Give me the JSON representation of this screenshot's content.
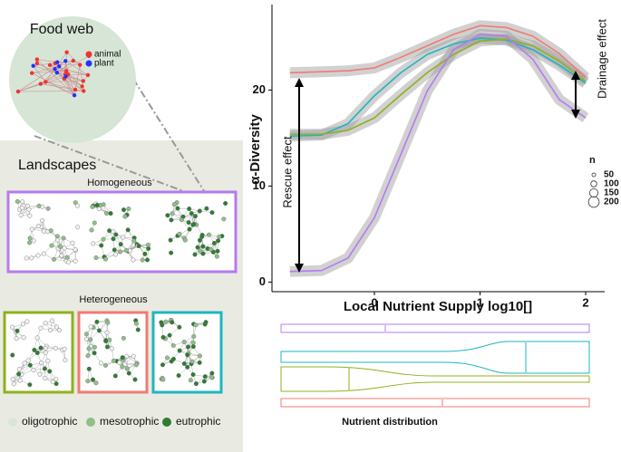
{
  "food_web": {
    "title": "Food web",
    "legend": [
      "animal",
      "plant"
    ]
  },
  "landscapes": {
    "title": "Landscapes",
    "homogeneous": "Homogeneous",
    "heterogeneous": "Heterogeneous",
    "legend": [
      "oligotrophic",
      "mesotrophic",
      "eutrophic"
    ]
  },
  "chart_data": {
    "type": "line",
    "y_label": "α-Diversity",
    "x_label": "Local Nutrient Supply log10[]",
    "x": [
      -0.8,
      -0.5,
      -0.25,
      0,
      0.25,
      0.5,
      0.75,
      1,
      1.25,
      1.5,
      1.75,
      2
    ],
    "series": [
      {
        "color": "#f07b72",
        "values": [
          21.8,
          21.9,
          22.0,
          22.3,
          23.4,
          24.6,
          25.8,
          26.7,
          26.5,
          25.6,
          23.8,
          21.3
        ]
      },
      {
        "color": "#1fb5c0",
        "values": [
          15.2,
          15.3,
          16.5,
          19.4,
          21.8,
          23.7,
          24.8,
          25.4,
          25.2,
          24.2,
          22.6,
          20.7
        ]
      },
      {
        "color": "#8fb01e",
        "values": [
          15.4,
          15.4,
          15.8,
          17.1,
          19.5,
          21.8,
          23.7,
          25.1,
          25.3,
          24.6,
          23.0,
          20.9
        ]
      },
      {
        "color": "#b57bef",
        "values": [
          1.1,
          1.2,
          2.5,
          6.7,
          13.3,
          19.9,
          24.2,
          25.8,
          25.6,
          23.2,
          19.0,
          17.1
        ]
      }
    ],
    "xlim": [
      -0.97,
      2.18
    ],
    "ylim": [
      -1,
      28.9
    ],
    "xticks": [
      0,
      1,
      2
    ],
    "yticks": [
      0,
      10,
      20
    ],
    "size_legend": {
      "title": "n",
      "labels": [
        50,
        100,
        150,
        200
      ]
    },
    "annotations": [
      "Rescue  effect",
      "Drainage effect"
    ]
  },
  "nutrient_distribution": {
    "label": "Nutrient distribution"
  }
}
